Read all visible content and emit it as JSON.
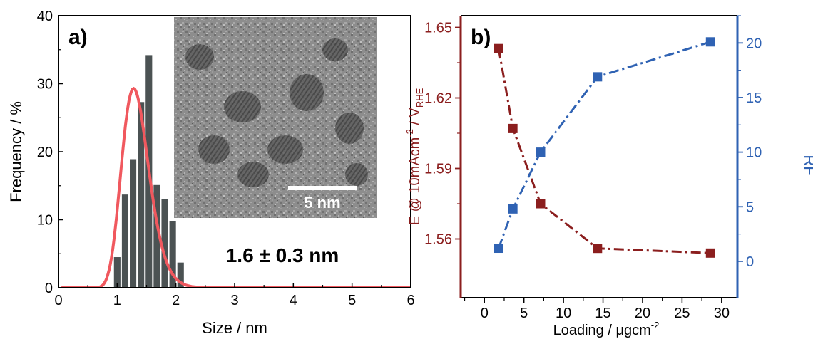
{
  "chart_data": [
    {
      "panel_label": "a)",
      "type": "bar",
      "xlabel": "Size / nm",
      "ylabel": "Frequency / %",
      "xlim": [
        0,
        6
      ],
      "ylim": [
        0,
        40
      ],
      "xticks": [
        "0",
        "1",
        "2",
        "3",
        "4",
        "5",
        "6"
      ],
      "yticks": [
        "0",
        "10",
        "20",
        "30",
        "40"
      ],
      "bin_width": 0.135,
      "bars": {
        "x": [
          1.0,
          1.135,
          1.27,
          1.405,
          1.54,
          1.675,
          1.81,
          1.945,
          2.08
        ],
        "values": [
          4.5,
          13.7,
          18.9,
          27.3,
          34.2,
          15.1,
          13.0,
          9.8,
          3.7
        ]
      },
      "fit_curve": {
        "type": "log-normal",
        "peak_x": 1.28,
        "peak_y": 29.3,
        "sigma": 0.18
      },
      "annotation": "1.6 ± 0.3 nm",
      "inset": {
        "description_scale_bar": "5 nm"
      },
      "colors": {
        "bars": "#4b5253",
        "fit": "#f0585e"
      }
    },
    {
      "panel_label": "b)",
      "type": "line",
      "xlabel": "Loading / μgcm",
      "xlabel_sup": "-2",
      "ylabel_left": {
        "pre": "E @ 10mAcm",
        "sup": "-2",
        "mid": " / V",
        "sub": "RHE"
      },
      "ylabel_right": "RF",
      "xlim": [
        -3,
        32
      ],
      "ylim_left": [
        1.535,
        1.655
      ],
      "ylim_right": [
        -3.333,
        22.5
      ],
      "xticks": [
        "0",
        "5",
        "10",
        "15",
        "20",
        "25",
        "30"
      ],
      "yticks_left": [
        "1.56",
        "1.59",
        "1.62",
        "1.65"
      ],
      "yticks_right": [
        "0",
        "5",
        "10",
        "15",
        "20"
      ],
      "series": [
        {
          "axis": "left",
          "x": [
            1.8,
            3.6,
            7.1,
            14.3,
            28.6
          ],
          "y": [
            1.641,
            1.607,
            1.575,
            1.556,
            1.554
          ],
          "color": "#8b1e1e"
        },
        {
          "axis": "right",
          "x": [
            1.8,
            3.6,
            7.1,
            14.3,
            28.6
          ],
          "y": [
            1.2,
            4.8,
            10.0,
            16.9,
            20.1
          ],
          "color": "#2f62b3"
        }
      ]
    }
  ]
}
